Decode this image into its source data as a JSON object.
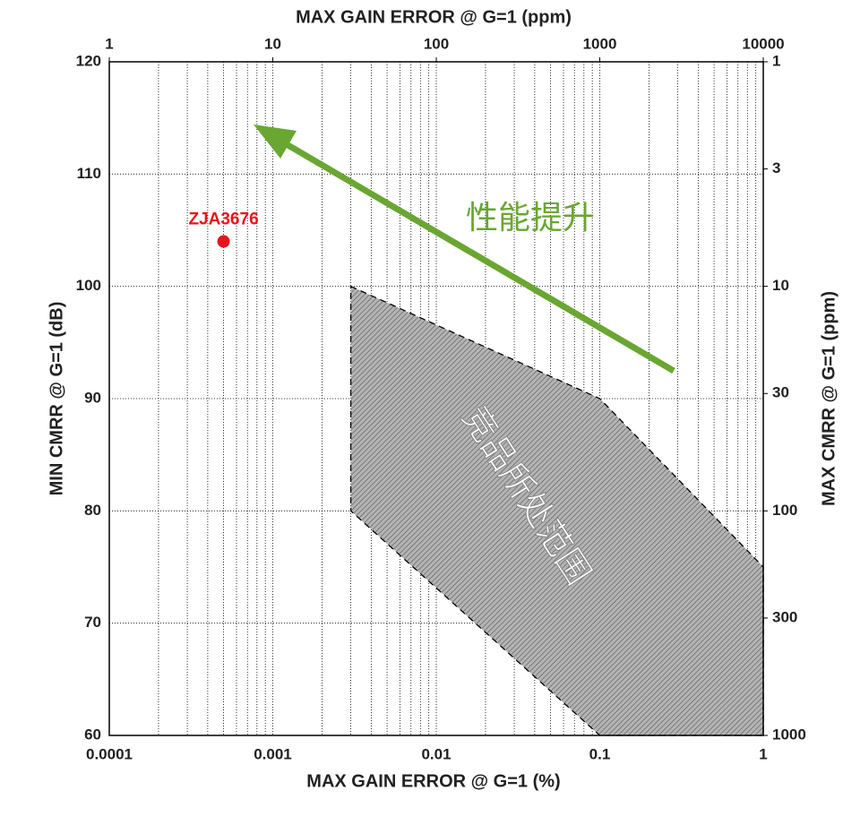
{
  "chart_data": {
    "type": "scatter",
    "xlabel": "MAX GAIN ERROR @ G=1 (%)",
    "x2label": "MAX GAIN ERROR @ G=1 (ppm)",
    "ylabel": "MIN CMRR @ G=1 (dB)",
    "y2label": "MAX CMRR @ G=1 (ppm)",
    "xscale": "log",
    "x2scale": "log",
    "y2scale": "log",
    "xlim": [
      0.0001,
      1
    ],
    "xticks": [
      0.0001,
      0.001,
      0.01,
      0.1,
      1
    ],
    "x_minor_ticks": [
      0.0002,
      0.0003,
      0.0004,
      0.0005,
      0.0006,
      0.0007,
      0.0008,
      0.0009,
      0.002,
      0.003,
      0.004,
      0.005,
      0.006,
      0.007,
      0.008,
      0.009,
      0.02,
      0.03,
      0.04,
      0.05,
      0.06,
      0.07,
      0.08,
      0.09,
      0.2,
      0.3,
      0.4,
      0.5,
      0.6,
      0.7,
      0.8,
      0.9
    ],
    "x2lim": [
      1,
      10000
    ],
    "x2ticks": [
      1,
      10,
      100,
      1000,
      10000
    ],
    "ylim": [
      60,
      120
    ],
    "yticks": [
      60,
      70,
      80,
      90,
      100,
      110,
      120
    ],
    "y2lim": [
      1000,
      1
    ],
    "y2ticks": [
      1,
      3,
      10,
      30,
      100,
      300,
      1000
    ],
    "grid": true,
    "series": [
      {
        "name": "ZJA3676",
        "color": "#e8141b",
        "x": [
          0.0005
        ],
        "values": [
          104
        ]
      }
    ],
    "region": {
      "x": [
        0.003,
        0.1,
        1,
        1,
        0.1,
        0.003
      ],
      "y": [
        100,
        90,
        75,
        60,
        60,
        80
      ]
    },
    "annotations": [
      "性能提升",
      "竞品所处范围"
    ]
  }
}
